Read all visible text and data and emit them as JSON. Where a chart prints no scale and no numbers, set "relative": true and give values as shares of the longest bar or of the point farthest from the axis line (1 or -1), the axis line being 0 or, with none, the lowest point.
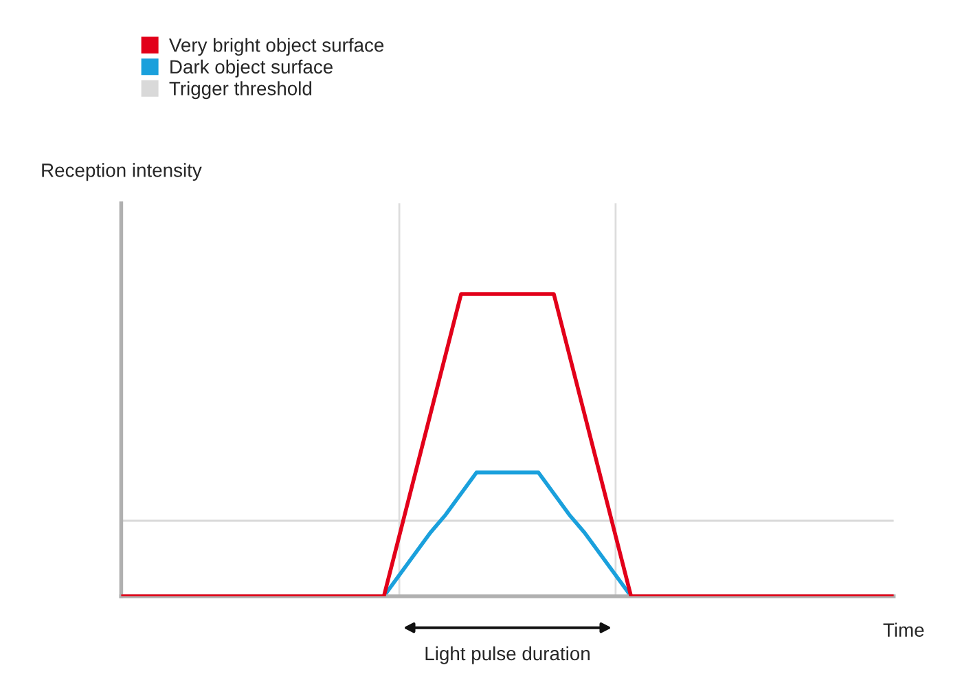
{
  "chart_data": {
    "type": "line",
    "relative": true,
    "xlabel": "Time",
    "categories": [
      null,
      null,
      null,
      null,
      null,
      null,
      null,
      null,
      null,
      null,
      null,
      null,
      null,
      null,
      null,
      null,
      null,
      null,
      null,
      null,
      null,
      null,
      null,
      null,
      null,
      null,
      null,
      null,
      null,
      null,
      null,
      null,
      null,
      null,
      null,
      null,
      null,
      null,
      null,
      null,
      null,
      null,
      null,
      null,
      null,
      null,
      null,
      null,
      null,
      null,
      null
    ],
    "legend": "top left",
    "marker": "none",
    "line_style": "solid",
    "annotations": [
      "Reception intensity",
      "Light pulse duration"
    ],
    "series": [
      {
        "name": "Very bright object surface",
        "color": "#e2001a",
        "values": [
          0,
          0,
          0,
          0,
          0,
          0,
          0,
          0,
          0,
          0,
          0,
          0,
          0,
          0,
          0,
          0,
          0,
          0,
          0.2,
          0.4,
          0.6,
          0.8,
          1,
          1,
          1,
          1,
          1,
          1,
          1,
          0.8,
          0.6,
          0.4,
          0.2,
          0,
          0,
          0,
          0,
          0,
          0,
          0,
          0,
          0,
          0,
          0,
          0,
          0,
          0,
          0,
          0,
          0,
          0
        ]
      },
      {
        "name": "Dark object surface",
        "color": "#1aa0dc",
        "values": [
          null,
          null,
          null,
          null,
          null,
          null,
          null,
          null,
          null,
          null,
          null,
          null,
          null,
          null,
          null,
          null,
          null,
          0,
          0.07,
          0.14,
          0.21,
          0.27,
          0.34,
          0.41,
          0.41,
          0.41,
          0.41,
          0.41,
          0.34,
          0.27,
          0.21,
          0.14,
          0.07,
          0,
          null,
          null,
          null,
          null,
          null,
          null,
          null,
          null,
          null,
          null,
          null,
          null,
          null,
          null,
          null,
          null,
          null
        ]
      },
      {
        "name": "Trigger threshold",
        "color": "#d9d9d9",
        "values": [
          0.25,
          0.25,
          0.25,
          0.25,
          0.25,
          0.25,
          0.25,
          0.25,
          0.25,
          0.25,
          0.25,
          0.25,
          0.25,
          0.25,
          0.25,
          0.25,
          0.25,
          0.25,
          0.25,
          0.25,
          0.25,
          0.25,
          0.25,
          0.25,
          0.25,
          0.25,
          0.25,
          0.25,
          0.25,
          0.25,
          0.25,
          0.25,
          0.25,
          0.25,
          0.25,
          0.25,
          0.25,
          0.25,
          0.25,
          0.25,
          0.25,
          0.25,
          0.25,
          0.25,
          0.25,
          0.25,
          0.25,
          0.25,
          0.25,
          0.25,
          0.25
        ]
      }
    ]
  }
}
